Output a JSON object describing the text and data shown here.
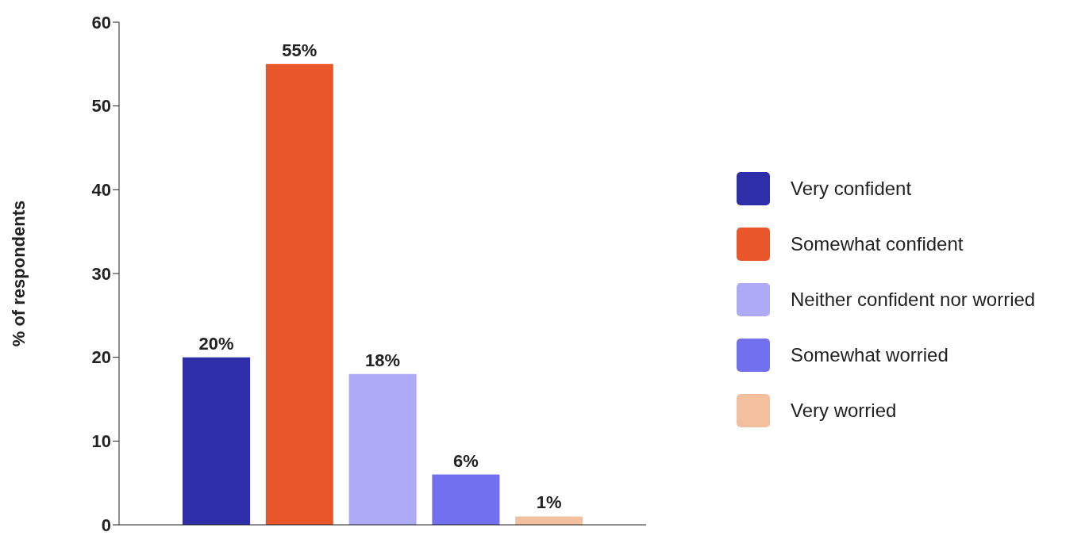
{
  "chart_data": {
    "type": "bar",
    "ylabel": "% of respondents",
    "categories": [
      null,
      null,
      null,
      null,
      null
    ],
    "stacked": true,
    "series": [
      {
        "name": "Very confident",
        "color": "#2e2fa8",
        "values": [
          20,
          null,
          null,
          null,
          null
        ],
        "value_labels": [
          "20%",
          null,
          null,
          null,
          null
        ]
      },
      {
        "name": "Somewhat confident",
        "color": "#e8562a",
        "values": [
          null,
          55,
          null,
          null,
          null
        ],
        "value_labels": [
          null,
          "55%",
          null,
          null,
          null
        ]
      },
      {
        "name": "Neither confident nor worried",
        "color": "#aeaaf5",
        "values": [
          null,
          null,
          18,
          null,
          null
        ],
        "value_labels": [
          null,
          null,
          "18%",
          null,
          null
        ]
      },
      {
        "name": "Somewhat worried",
        "color": "#7370f0",
        "values": [
          null,
          null,
          null,
          6,
          null
        ],
        "value_labels": [
          null,
          null,
          null,
          "6%",
          null
        ]
      },
      {
        "name": "Very worried",
        "color": "#f2bf9f",
        "values": [
          null,
          null,
          null,
          null,
          1
        ],
        "value_labels": [
          null,
          null,
          null,
          null,
          "1%"
        ]
      }
    ],
    "ylim": [
      0,
      60
    ],
    "yticks": [
      0,
      10,
      20,
      30,
      40,
      50,
      60
    ],
    "grid": false,
    "legend": "right",
    "tick_labels": "y"
  }
}
